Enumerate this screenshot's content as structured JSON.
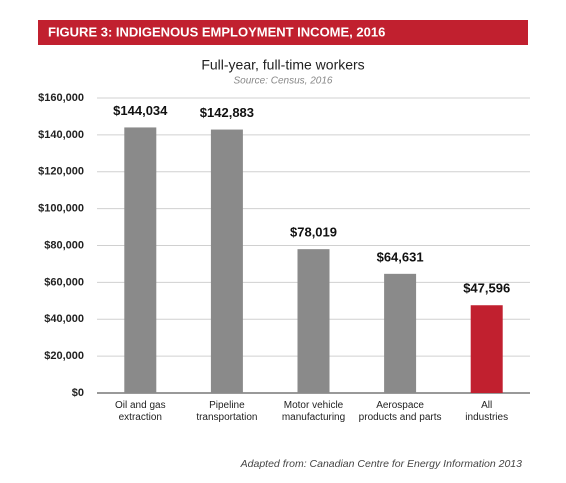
{
  "chart_data": {
    "type": "bar",
    "title": "FIGURE 3: INDIGENOUS EMPLOYMENT INCOME, 2016",
    "subtitle": "Full-year, full-time workers",
    "source": "Source: Census, 2016",
    "footnote": "Adapted from: Canadian Centre for Energy Information 2013",
    "categories": [
      "Oil and gas\nextraction",
      "Pipeline\ntransportation",
      "Motor vehicle\nmanufacturing",
      "Aerospace\nproducts and parts",
      "All\nindustries"
    ],
    "values": [
      144034,
      142883,
      78019,
      64631,
      47596
    ],
    "value_labels": [
      "$144,034",
      "$142,883",
      "$78,019",
      "$64,631",
      "$47,596"
    ],
    "colors": [
      "#8a8a8a",
      "#8a8a8a",
      "#8a8a8a",
      "#8a8a8a",
      "#c1202f"
    ],
    "ylim": [
      0,
      160000
    ],
    "yticks": [
      {
        "value": 0,
        "label": "$0"
      },
      {
        "value": 20000,
        "label": "$20,000"
      },
      {
        "value": 40000,
        "label": "$40,000"
      },
      {
        "value": 60000,
        "label": "$60,000"
      },
      {
        "value": 80000,
        "label": "$80,000"
      },
      {
        "value": 100000,
        "label": "$100,000"
      },
      {
        "value": 120000,
        "label": "$120,000"
      },
      {
        "value": 140000,
        "label": "$140,000"
      },
      {
        "value": 160000,
        "label": "$160,000"
      }
    ],
    "grid": true
  }
}
